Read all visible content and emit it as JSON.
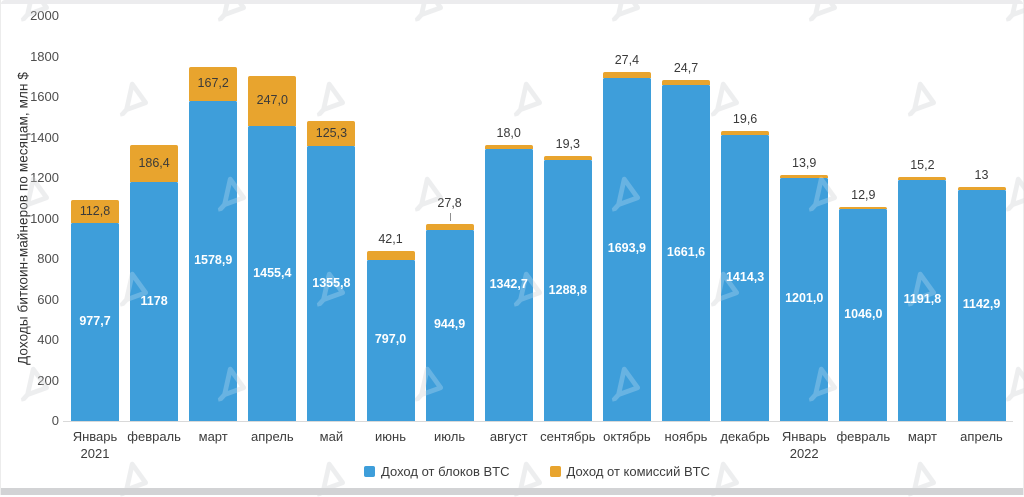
{
  "chart_data": {
    "type": "bar",
    "subtype": "stacked",
    "title": "",
    "ylabel": "Доходы биткоин-майнеров по месяцам, млн $",
    "xlabel": "",
    "ylim": [
      0,
      2000
    ],
    "ytick_step": 200,
    "yticks": [
      "0",
      "200",
      "400",
      "600",
      "800",
      "1000",
      "1200",
      "1400",
      "1600",
      "1800",
      "2000"
    ],
    "grid": false,
    "legend_position": "bottom-center",
    "months": [
      {
        "name": "Январь",
        "year": "2021"
      },
      {
        "name": "февраль",
        "year": ""
      },
      {
        "name": "март",
        "year": ""
      },
      {
        "name": "апрель",
        "year": ""
      },
      {
        "name": "май",
        "year": ""
      },
      {
        "name": "июнь",
        "year": ""
      },
      {
        "name": "июль",
        "year": ""
      },
      {
        "name": "август",
        "year": ""
      },
      {
        "name": "сентябрь",
        "year": ""
      },
      {
        "name": "октябрь",
        "year": ""
      },
      {
        "name": "ноябрь",
        "year": ""
      },
      {
        "name": "декабрь",
        "year": ""
      },
      {
        "name": "Январь",
        "year": "2022"
      },
      {
        "name": "февраль",
        "year": ""
      },
      {
        "name": "март",
        "year": ""
      },
      {
        "name": "апрель",
        "year": ""
      }
    ],
    "series": [
      {
        "name": "Доход от блоков BTC",
        "color": "#3E9EDA",
        "values": [
          977.7,
          1178,
          1578.9,
          1455.4,
          1355.8,
          797.0,
          944.9,
          1342.7,
          1288.8,
          1693.9,
          1661.6,
          1414.3,
          1201.0,
          1046.0,
          1191.8,
          1142.9
        ],
        "labels": [
          "977,7",
          "1178",
          "1578,9",
          "1455,4",
          "1355,8",
          "797,0",
          "944,9",
          "1342,7",
          "1288,8",
          "1693,9",
          "1661,6",
          "1414,3",
          "1201,0",
          "1046,0",
          "1191,8",
          "1142,9"
        ]
      },
      {
        "name": "Доход от комиссий BTC",
        "color": "#E8A42E",
        "values": [
          112.8,
          186.4,
          167.2,
          247.0,
          125.3,
          42.1,
          27.8,
          18.0,
          19.3,
          27.4,
          24.7,
          19.6,
          13.9,
          12.9,
          15.2,
          13
        ],
        "labels": [
          "112,8",
          "186,4",
          "167,2",
          "247,0",
          "125,3",
          "42,1",
          "27,8",
          "18,0",
          "19,3",
          "27,4",
          "24,7",
          "19,6",
          "13,9",
          "12,9",
          "15,2",
          "13"
        ]
      }
    ],
    "annotations": {
      "callout_month_index": 6
    },
    "colors": {
      "blocks": "#3E9EDA",
      "fees": "#E8A42E",
      "value_text_on_bar": "#ffffff",
      "label_text": "#3a3a3a",
      "axis_line": "#d9d9d9"
    },
    "watermark_icon": "forklog-logo-watermark"
  }
}
